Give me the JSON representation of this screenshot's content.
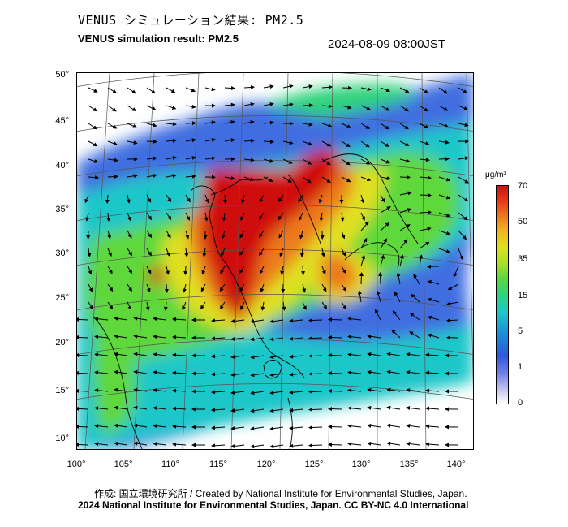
{
  "header": {
    "title_ja": "VENUS シミュレーション結果: PM2.5",
    "title_en": "VENUS simulation result: PM2.5",
    "timestamp": "2024-08-09 08:00JST"
  },
  "map": {
    "lat_labels": [
      "50°",
      "45°",
      "40°",
      "35°",
      "30°",
      "25°",
      "20°",
      "15°",
      "10°"
    ],
    "lon_labels": [
      "100°",
      "105°",
      "110°",
      "115°",
      "120°",
      "125°",
      "130°",
      "135°",
      "140°"
    ]
  },
  "colorbar": {
    "unit": "μg/m³",
    "ticks": [
      "70",
      "50",
      "35",
      "15",
      "5",
      "1",
      "0"
    ],
    "colors": [
      "#ffffff",
      "#6f80e6",
      "#1a8fd8",
      "#1fc7c9",
      "#5fd83a",
      "#e0e020",
      "#ec7a1c",
      "#d01010"
    ]
  },
  "footer": {
    "credit_ja": "作成: 国立環境研究所 / Created by National Institute for Environmental Studies, Japan.",
    "copyright": "2024 National Institute for Environmental Studies, Japan. CC BY-NC 4.0 International"
  }
}
